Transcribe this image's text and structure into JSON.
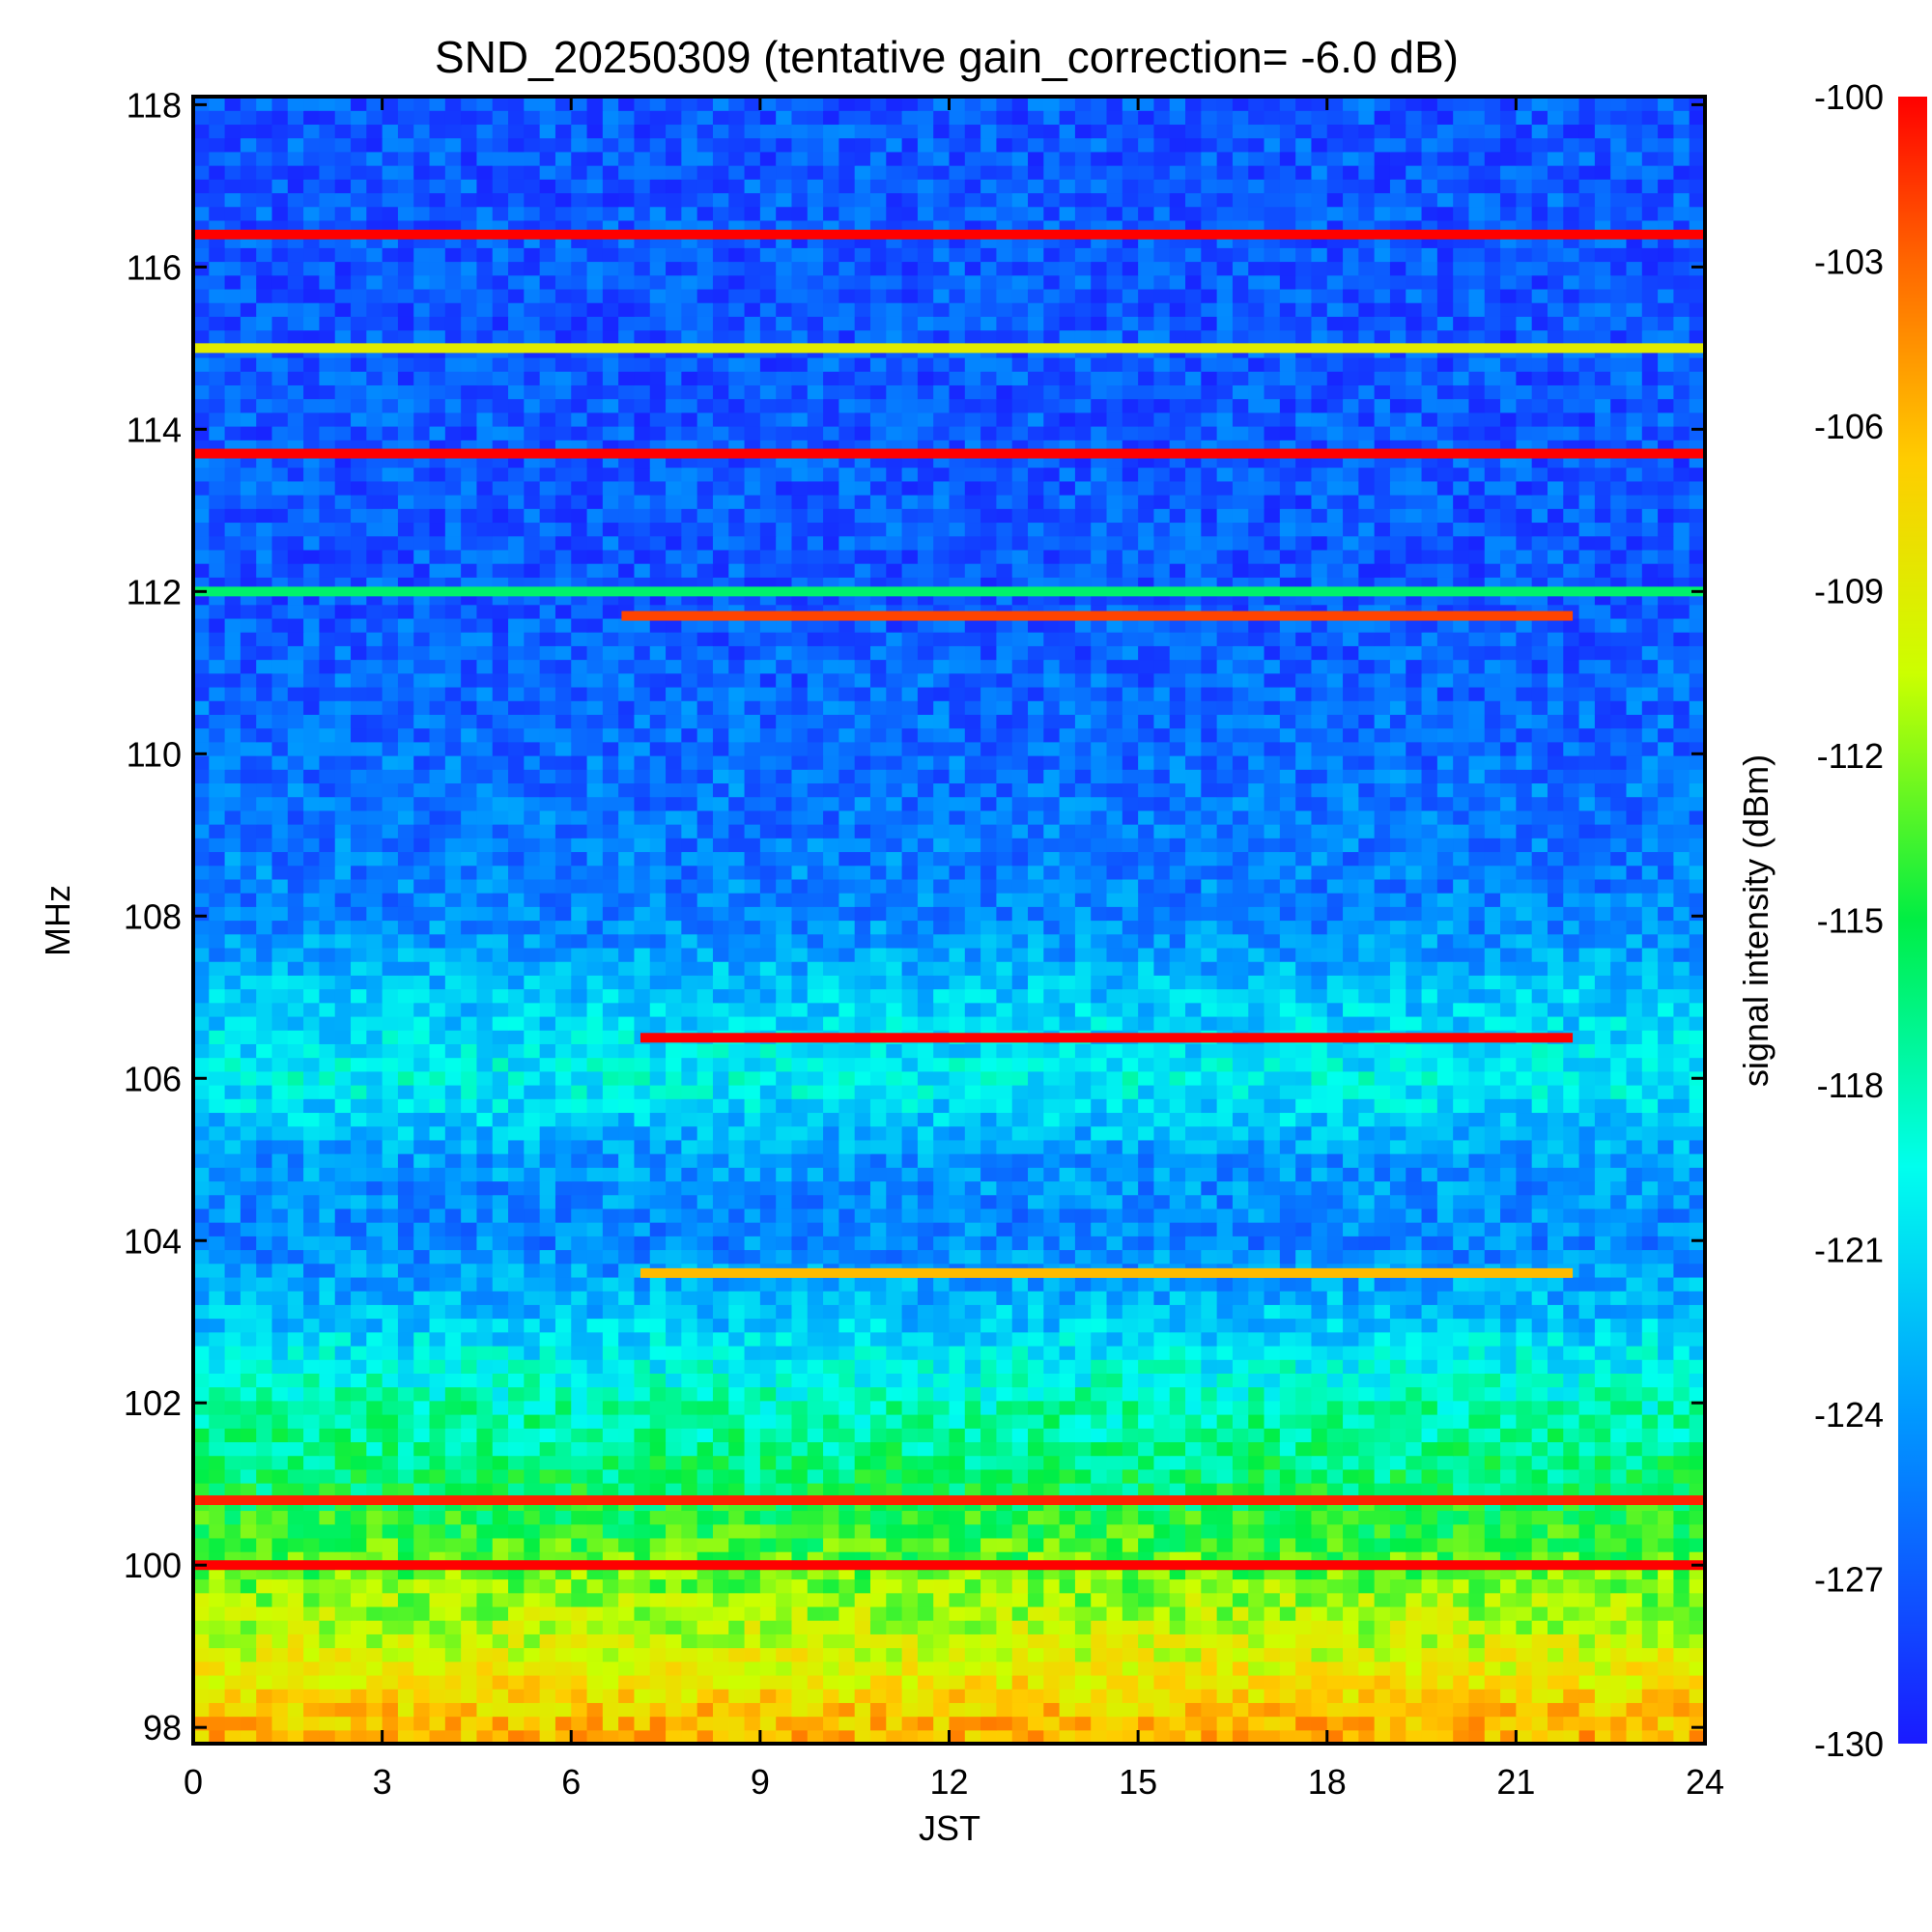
{
  "chart_data": {
    "type": "heatmap",
    "title": "SND_20250309 (tentative gain_correction= -6.0 dB)",
    "xlabel": "JST",
    "ylabel": "MHz",
    "xlim": [
      0,
      24
    ],
    "ylim": [
      97.8,
      118.1
    ],
    "x_ticks": [
      0,
      3,
      6,
      9,
      12,
      15,
      18,
      21,
      24
    ],
    "x_tick_labels": [
      "0",
      "3",
      "6",
      "9",
      "12",
      "15",
      "18",
      "21",
      "24"
    ],
    "y_ticks": [
      98,
      100,
      102,
      104,
      106,
      108,
      110,
      112,
      114,
      116,
      118
    ],
    "y_tick_labels": [
      "98",
      "100",
      "102",
      "104",
      "106",
      "108",
      "110",
      "112",
      "114",
      "116",
      "118"
    ],
    "colorbar": {
      "label": "signal intensity (dBm)",
      "min": -130,
      "max": -100,
      "ticks": [
        -100,
        -103,
        -106,
        -109,
        -112,
        -115,
        -118,
        -121,
        -124,
        -127,
        -130
      ],
      "tick_labels": [
        "-100",
        "-103",
        "-106",
        "-109",
        "-112",
        "-115",
        "-118",
        "-121",
        "-124",
        "-127",
        "-130"
      ]
    },
    "strong_lines": [
      {
        "freq_mhz": 116.4,
        "t_start": 0,
        "t_end": 24,
        "dbm": -100
      },
      {
        "freq_mhz": 115.0,
        "t_start": 0,
        "t_end": 24,
        "dbm": -109
      },
      {
        "freq_mhz": 113.7,
        "t_start": 0,
        "t_end": 24,
        "dbm": -100
      },
      {
        "freq_mhz": 112.0,
        "t_start": 0,
        "t_end": 24,
        "dbm": -116
      },
      {
        "freq_mhz": 111.7,
        "t_start": 6.8,
        "t_end": 21.9,
        "dbm": -102
      },
      {
        "freq_mhz": 106.5,
        "t_start": 7.1,
        "t_end": 21.9,
        "dbm": -100
      },
      {
        "freq_mhz": 103.6,
        "t_start": 7.1,
        "t_end": 21.9,
        "dbm": -106
      },
      {
        "freq_mhz": 100.8,
        "t_start": 0,
        "t_end": 24,
        "dbm": -101
      },
      {
        "freq_mhz": 100.0,
        "t_start": 0,
        "t_end": 24,
        "dbm": -100
      }
    ],
    "background_profile": [
      {
        "freq_mhz": 98.0,
        "dbm": -106
      },
      {
        "freq_mhz": 99.0,
        "dbm": -110
      },
      {
        "freq_mhz": 100.0,
        "dbm": -113
      },
      {
        "freq_mhz": 101.0,
        "dbm": -116
      },
      {
        "freq_mhz": 102.0,
        "dbm": -118
      },
      {
        "freq_mhz": 103.0,
        "dbm": -122
      },
      {
        "freq_mhz": 104.0,
        "dbm": -125
      },
      {
        "freq_mhz": 105.0,
        "dbm": -124
      },
      {
        "freq_mhz": 106.0,
        "dbm": -120
      },
      {
        "freq_mhz": 107.0,
        "dbm": -122
      },
      {
        "freq_mhz": 108.0,
        "dbm": -125
      },
      {
        "freq_mhz": 110.0,
        "dbm": -126
      },
      {
        "freq_mhz": 112.0,
        "dbm": -127
      },
      {
        "freq_mhz": 114.0,
        "dbm": -127
      },
      {
        "freq_mhz": 116.0,
        "dbm": -127
      },
      {
        "freq_mhz": 118.0,
        "dbm": -127
      }
    ],
    "grid": false,
    "colormap": "rainbow (blue-cyan-green-yellow-red)"
  }
}
